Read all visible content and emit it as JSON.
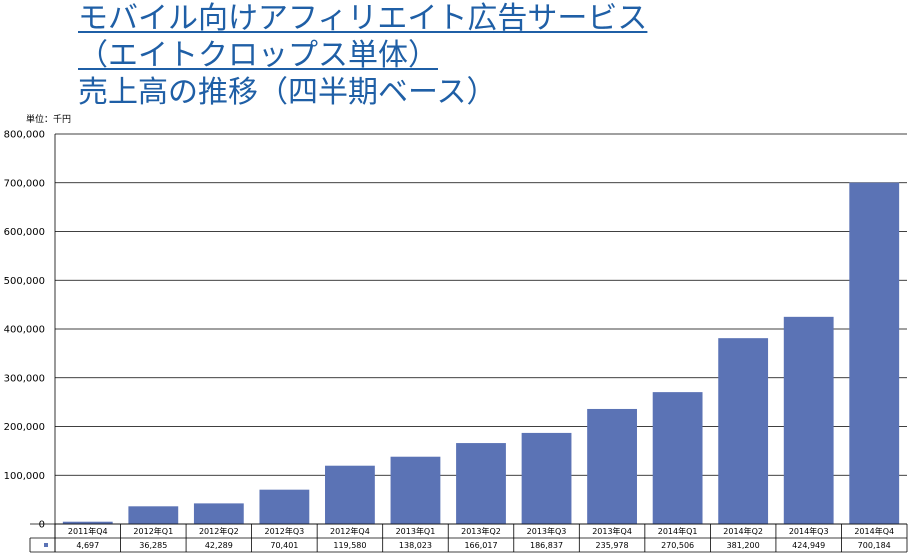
{
  "title_lines": [
    "モバイル向けアフィリエイト広告サービス",
    "（エイトクロップス単体）",
    "売上高の推移（四半期ベース）"
  ],
  "unit_label": "単位：千円",
  "colors": {
    "bar": "#5b73b5",
    "title": "#1f5fa6",
    "grid": "#000000"
  },
  "chart_data": {
    "type": "bar",
    "title": "モバイル向けアフィリエイト広告サービス（エイトクロップス単体）売上高の推移（四半期ベース）",
    "ylabel": "単位：千円",
    "ylim": [
      0,
      800000
    ],
    "yticks": [
      0,
      100000,
      200000,
      300000,
      400000,
      500000,
      600000,
      700000,
      800000
    ],
    "ytick_labels": [
      "0",
      "100,000",
      "200,000",
      "300,000",
      "400,000",
      "500,000",
      "600,000",
      "700,000",
      "800,000"
    ],
    "grid": true,
    "legend": "data-table",
    "categories": [
      "2011年Q4",
      "2012年Q1",
      "2012年Q2",
      "2012年Q3",
      "2012年Q4",
      "2013年Q1",
      "2013年Q2",
      "2013年Q3",
      "2013年Q4",
      "2014年Q1",
      "2014年Q2",
      "2014年Q3",
      "2014年Q4"
    ],
    "values": [
      4697,
      36285,
      42289,
      70401,
      119580,
      138023,
      166017,
      186837,
      235978,
      270506,
      381200,
      424949,
      700184
    ],
    "value_labels": [
      "4,697",
      "36,285",
      "42,289",
      "70,401",
      "119,580",
      "138,023",
      "166,017",
      "186,837",
      "235,978",
      "270,506",
      "381,200",
      "424,949",
      "700,184"
    ]
  }
}
